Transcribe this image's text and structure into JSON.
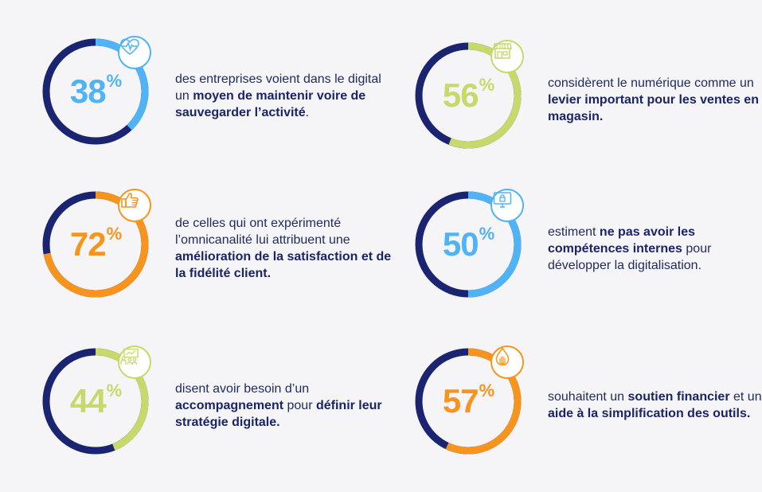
{
  "colors": {
    "navy": "#1a2470",
    "sky": "#4fb3f5",
    "lime": "#c6d96a",
    "orange": "#f7941d",
    "text": "#1f2a5c"
  },
  "stats": [
    {
      "id": "stat-38",
      "value": 38,
      "number": "38",
      "sign": "%",
      "accent": "#4fb3f5",
      "icon": "heart-pulse-icon",
      "text": {
        "a": "des entreprises voient dans le digital un ",
        "b": "moyen de maintenir voire de sauvegarder l’activité",
        "c": "."
      }
    },
    {
      "id": "stat-56",
      "value": 56,
      "number": "56",
      "sign": "%",
      "accent": "#c6d96a",
      "icon": "storefront-icon",
      "text": {
        "a": "considèrent le numérique comme un ",
        "b": "levier important pour les ventes en magasin.",
        "c": ""
      }
    },
    {
      "id": "stat-72",
      "value": 72,
      "number": "72",
      "sign": "%",
      "accent": "#f7941d",
      "icon": "thumbs-up-icon",
      "text": {
        "a": "de celles qui ont expérimenté l’omnicanalité lui attribuent une ",
        "b": "amélioration de la satisfaction et de la fidélité client.",
        "c": ""
      }
    },
    {
      "id": "stat-50",
      "value": 50,
      "number": "50",
      "sign": "%",
      "accent": "#4fb3f5",
      "icon": "monitor-lock-icon",
      "text": {
        "a": "estiment ",
        "b": "ne pas avoir les compétences internes",
        "c": " pour développer la digitalisation."
      }
    },
    {
      "id": "stat-44",
      "value": 44,
      "number": "44",
      "sign": "%",
      "accent": "#c6d96a",
      "icon": "presentation-icon",
      "text": {
        "a": "disent avoir besoin d’un ",
        "b": "accompagnement",
        "c": " pour ",
        "d": "définir leur stratégie digitale."
      }
    },
    {
      "id": "stat-57",
      "value": 57,
      "number": "57",
      "sign": "%",
      "accent": "#f7941d",
      "icon": "hand-drop-icon",
      "text": {
        "a": "souhaitent un ",
        "b": "soutien financier",
        "c": " et une ",
        "d": "aide à la simplification des outils."
      }
    }
  ]
}
